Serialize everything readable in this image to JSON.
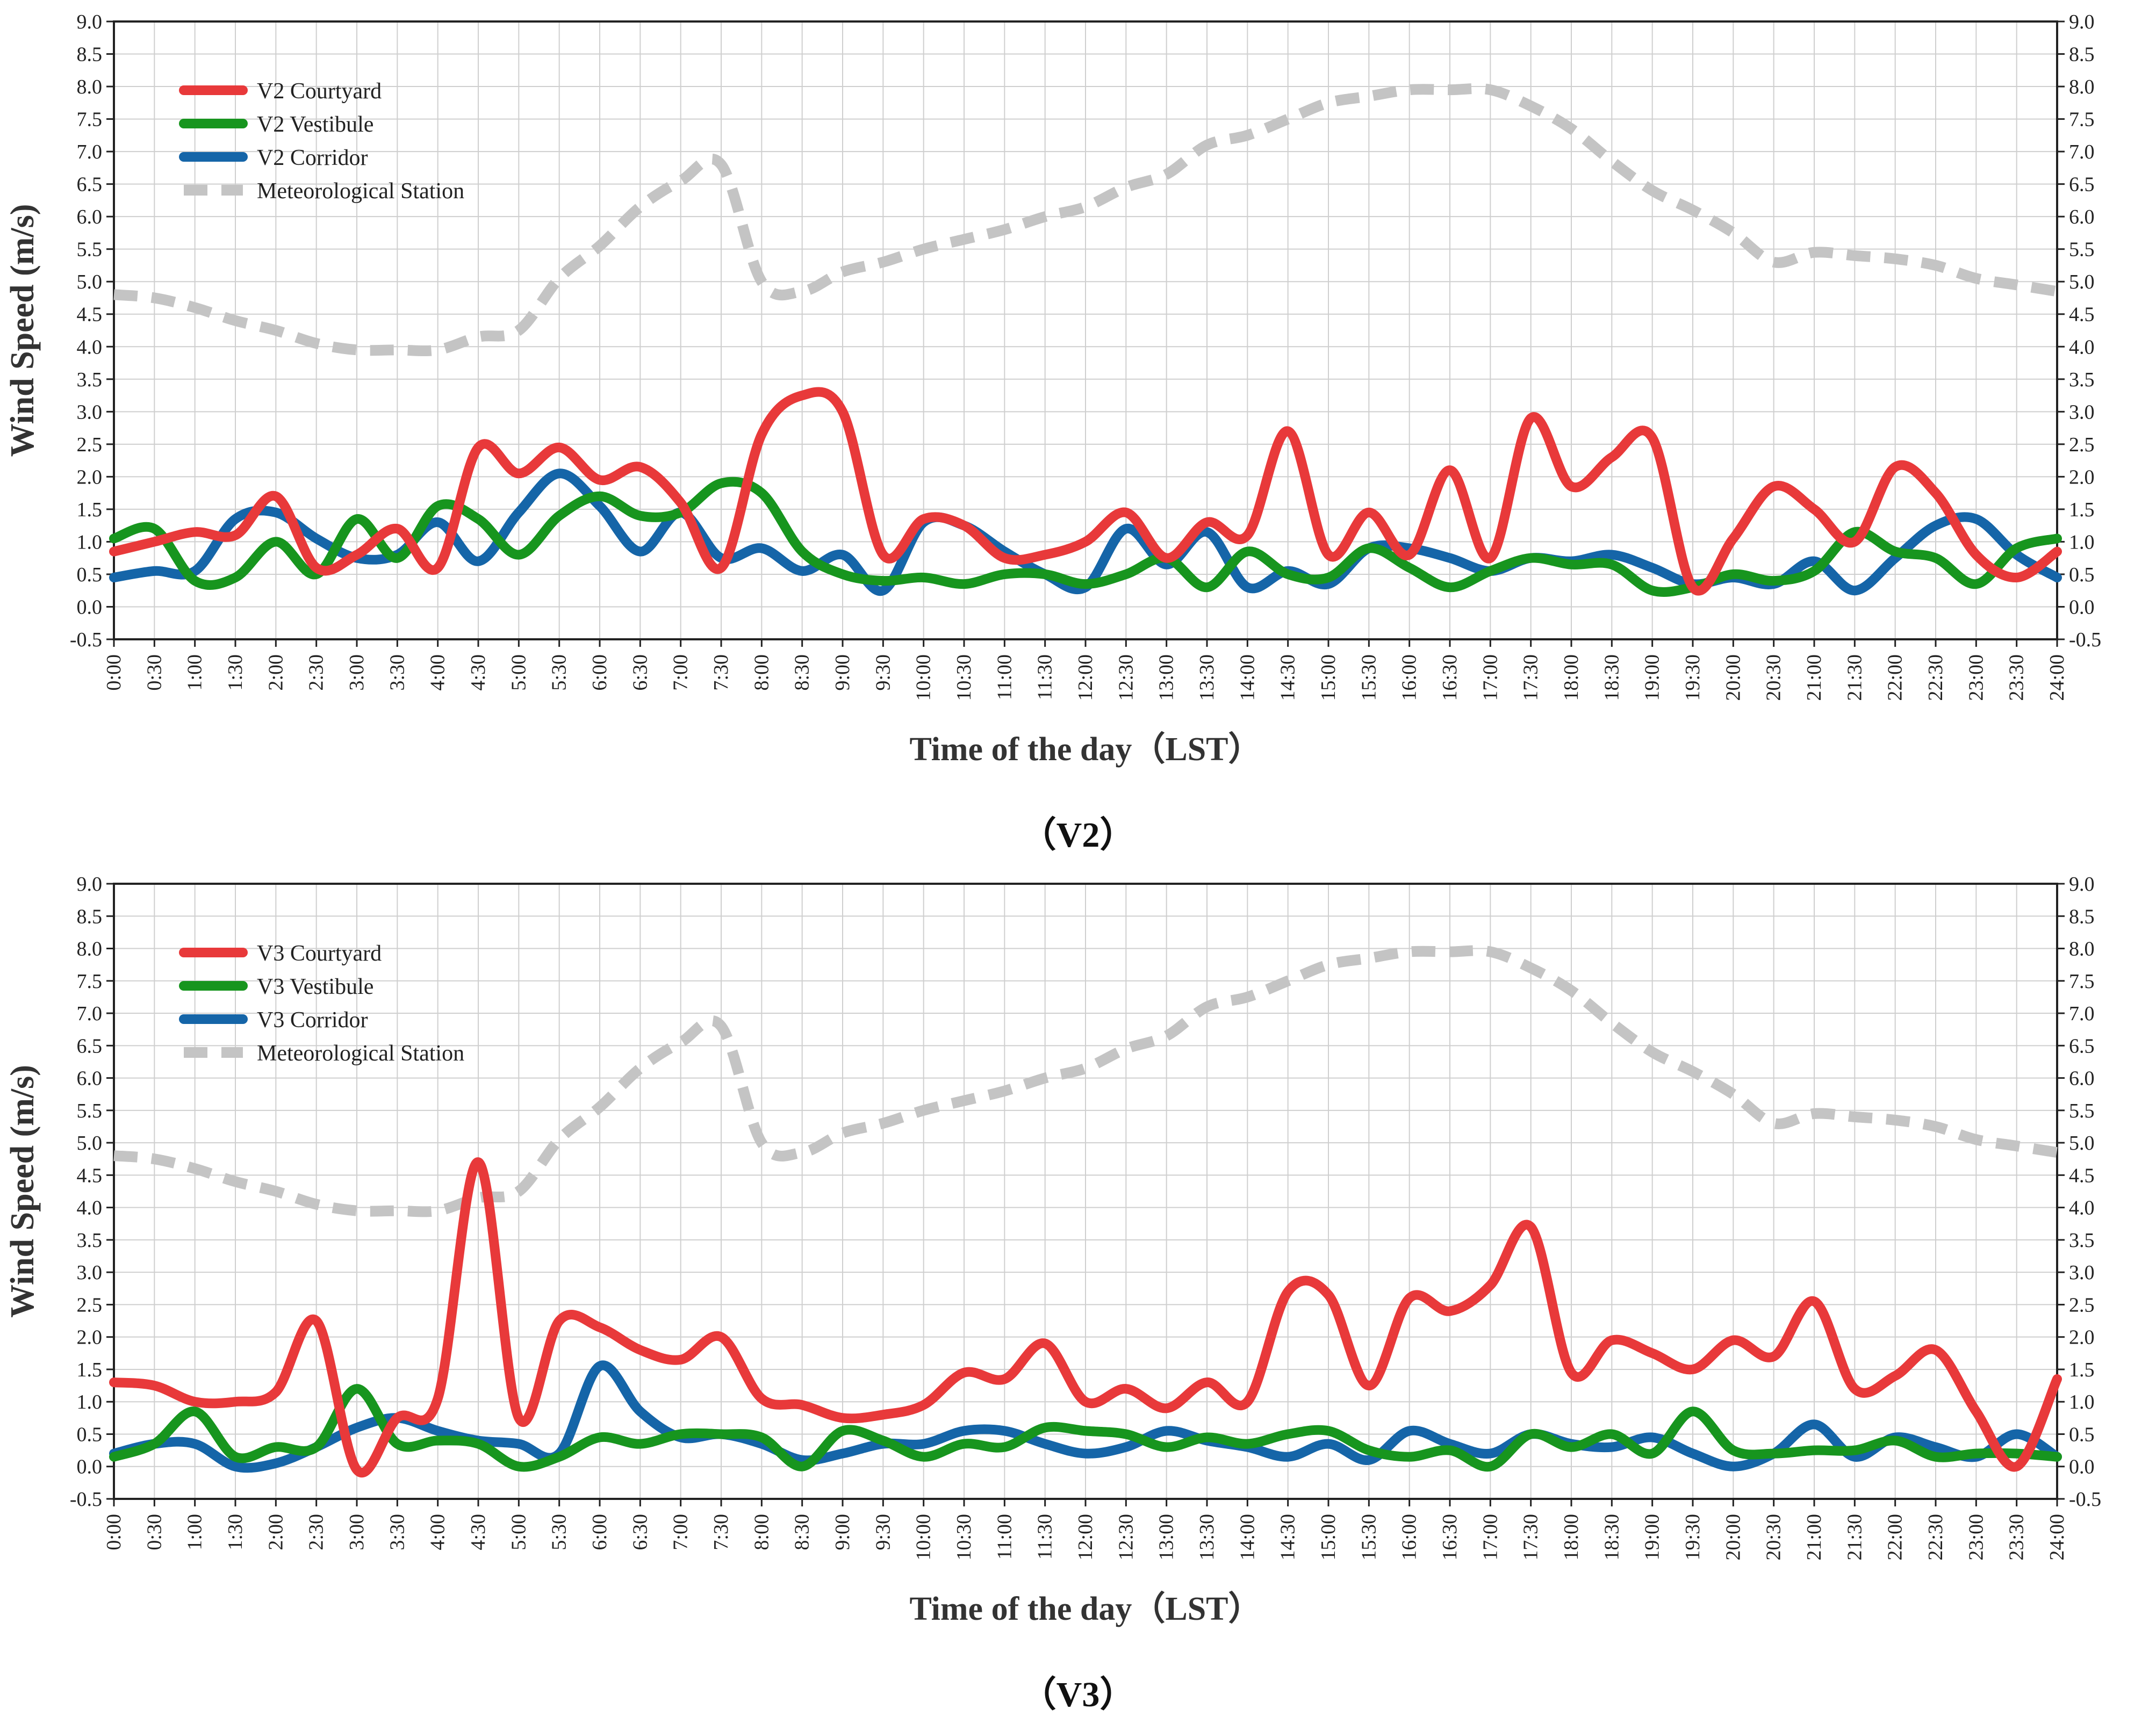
{
  "x_tick_labels": [
    "0:00",
    "0:30",
    "1:00",
    "1:30",
    "2:00",
    "2:30",
    "3:00",
    "3:30",
    "4:00",
    "4:30",
    "5:00",
    "5:30",
    "6:00",
    "6:30",
    "7:00",
    "7:30",
    "8:00",
    "8:30",
    "9:00",
    "9:30",
    "10:00",
    "10:30",
    "11:00",
    "11:30",
    "12:00",
    "12:30",
    "13:00",
    "13:30",
    "14:00",
    "14:30",
    "15:00",
    "15:30",
    "16:00",
    "16:30",
    "17:00",
    "17:30",
    "18:00",
    "18:30",
    "19:00",
    "19:30",
    "20:00",
    "20:30",
    "21:00",
    "21:30",
    "22:00",
    "22:30",
    "23:00",
    "23:30",
    "24:00"
  ],
  "y_tick_labels": [
    "-0.5",
    "0.0",
    "0.5",
    "1.0",
    "1.5",
    "2.0",
    "2.5",
    "3.0",
    "3.5",
    "4.0",
    "4.5",
    "5.0",
    "5.5",
    "6.0",
    "6.5",
    "7.0",
    "7.5",
    "8.0",
    "8.5",
    "9.0"
  ],
  "colors": {
    "courtyard": "#e8393a",
    "vestibule": "#17951e",
    "corridor": "#1565a8",
    "station": "#c4c4c4"
  },
  "chart_data": [
    {
      "type": "line",
      "caption": "（V2）",
      "xlabel": "Time of the day（LST）",
      "ylabel": "Wind Speed (m/s)",
      "ylim": [
        -0.5,
        9.0
      ],
      "grid": true,
      "legend_position": "top-left",
      "series": [
        {
          "name": "V2 Courtyard",
          "key": "courtyard",
          "values": [
            0.85,
            1.0,
            1.15,
            1.1,
            1.7,
            0.6,
            0.8,
            1.2,
            0.6,
            2.45,
            2.05,
            2.45,
            1.95,
            2.15,
            1.6,
            0.6,
            2.65,
            3.25,
            3.0,
            0.8,
            1.35,
            1.25,
            0.75,
            0.8,
            1.0,
            1.45,
            0.75,
            1.3,
            1.1,
            2.7,
            0.8,
            1.45,
            0.8,
            2.1,
            0.75,
            2.9,
            1.85,
            2.3,
            2.6,
            0.3,
            1.05,
            1.85,
            1.5,
            1.0,
            2.15,
            1.75,
            0.8,
            0.45,
            0.85
          ]
        },
        {
          "name": "V2 Vestibule",
          "key": "vestibule",
          "values": [
            1.05,
            1.2,
            0.4,
            0.45,
            1.0,
            0.5,
            1.35,
            0.75,
            1.55,
            1.35,
            0.8,
            1.4,
            1.7,
            1.4,
            1.45,
            1.9,
            1.75,
            0.85,
            0.5,
            0.4,
            0.45,
            0.35,
            0.5,
            0.5,
            0.35,
            0.5,
            0.75,
            0.3,
            0.85,
            0.5,
            0.45,
            0.9,
            0.6,
            0.3,
            0.55,
            0.75,
            0.65,
            0.65,
            0.25,
            0.3,
            0.5,
            0.4,
            0.55,
            1.15,
            0.85,
            0.75,
            0.35,
            0.9,
            1.05
          ]
        },
        {
          "name": "V2 Corridor",
          "key": "corridor",
          "values": [
            0.45,
            0.55,
            0.55,
            1.35,
            1.45,
            1.05,
            0.75,
            0.8,
            1.3,
            0.7,
            1.45,
            2.05,
            1.55,
            0.85,
            1.45,
            0.75,
            0.9,
            0.55,
            0.8,
            0.25,
            1.3,
            1.25,
            0.85,
            0.5,
            0.3,
            1.2,
            0.65,
            1.15,
            0.3,
            0.55,
            0.35,
            0.9,
            0.9,
            0.75,
            0.55,
            0.75,
            0.7,
            0.8,
            0.6,
            0.35,
            0.45,
            0.35,
            0.7,
            0.25,
            0.75,
            1.25,
            1.35,
            0.8,
            0.45
          ]
        },
        {
          "name": "Meteorological Station",
          "key": "station",
          "dashed": true,
          "values": [
            4.8,
            4.75,
            4.6,
            4.4,
            4.25,
            4.05,
            3.95,
            3.95,
            3.95,
            4.15,
            4.25,
            5.05,
            5.55,
            6.15,
            6.55,
            6.8,
            5.0,
            4.85,
            5.15,
            5.3,
            5.5,
            5.65,
            5.8,
            6.0,
            6.15,
            6.45,
            6.65,
            7.1,
            7.25,
            7.5,
            7.75,
            7.85,
            7.95,
            7.95,
            7.95,
            7.7,
            7.35,
            6.85,
            6.4,
            6.1,
            5.75,
            5.3,
            5.45,
            5.4,
            5.35,
            5.25,
            5.05,
            4.95,
            4.85
          ]
        }
      ]
    },
    {
      "type": "line",
      "caption": "（V3）",
      "xlabel": "Time of the day（LST）",
      "ylabel": "Wind Speed (m/s)",
      "ylim": [
        -0.5,
        9.0
      ],
      "grid": true,
      "legend_position": "top-left",
      "series": [
        {
          "name": "V3 Courtyard",
          "key": "courtyard",
          "values": [
            1.3,
            1.25,
            1.0,
            1.0,
            1.15,
            2.25,
            -0.05,
            0.75,
            1.05,
            4.7,
            0.75,
            2.25,
            2.15,
            1.8,
            1.65,
            2.0,
            1.05,
            0.95,
            0.75,
            0.8,
            0.95,
            1.45,
            1.35,
            1.9,
            1.0,
            1.2,
            0.9,
            1.3,
            1.0,
            2.7,
            2.65,
            1.25,
            2.6,
            2.4,
            2.8,
            3.7,
            1.45,
            1.95,
            1.75,
            1.5,
            1.95,
            1.7,
            2.55,
            1.2,
            1.4,
            1.8,
            0.85,
            0.0,
            1.35
          ]
        },
        {
          "name": "V3 Vestibule",
          "key": "vestibule",
          "values": [
            0.15,
            0.35,
            0.85,
            0.15,
            0.3,
            0.3,
            1.2,
            0.35,
            0.4,
            0.35,
            0.0,
            0.15,
            0.45,
            0.35,
            0.5,
            0.5,
            0.45,
            0.0,
            0.55,
            0.4,
            0.15,
            0.35,
            0.3,
            0.6,
            0.55,
            0.5,
            0.3,
            0.45,
            0.35,
            0.5,
            0.55,
            0.25,
            0.15,
            0.25,
            0.0,
            0.5,
            0.3,
            0.5,
            0.2,
            0.85,
            0.25,
            0.2,
            0.25,
            0.25,
            0.4,
            0.15,
            0.2,
            0.2,
            0.15
          ]
        },
        {
          "name": "V3 Corridor",
          "key": "corridor",
          "values": [
            0.2,
            0.35,
            0.35,
            0.0,
            0.05,
            0.3,
            0.6,
            0.75,
            0.55,
            0.4,
            0.35,
            0.2,
            1.55,
            0.85,
            0.45,
            0.5,
            0.35,
            0.1,
            0.2,
            0.35,
            0.35,
            0.55,
            0.55,
            0.35,
            0.2,
            0.3,
            0.55,
            0.4,
            0.3,
            0.15,
            0.35,
            0.1,
            0.55,
            0.35,
            0.2,
            0.5,
            0.35,
            0.3,
            0.45,
            0.2,
            0.0,
            0.2,
            0.65,
            0.15,
            0.45,
            0.3,
            0.15,
            0.5,
            0.15
          ]
        },
        {
          "name": "Meteorological Station",
          "key": "station",
          "dashed": true,
          "values": [
            4.8,
            4.75,
            4.6,
            4.4,
            4.25,
            4.05,
            3.95,
            3.95,
            3.95,
            4.15,
            4.25,
            5.05,
            5.55,
            6.15,
            6.55,
            6.8,
            5.0,
            4.85,
            5.15,
            5.3,
            5.5,
            5.65,
            5.8,
            6.0,
            6.15,
            6.45,
            6.65,
            7.1,
            7.25,
            7.5,
            7.75,
            7.85,
            7.95,
            7.95,
            7.95,
            7.7,
            7.35,
            6.85,
            6.4,
            6.1,
            5.75,
            5.3,
            5.45,
            5.4,
            5.35,
            5.25,
            5.05,
            4.95,
            4.85
          ]
        }
      ]
    }
  ]
}
